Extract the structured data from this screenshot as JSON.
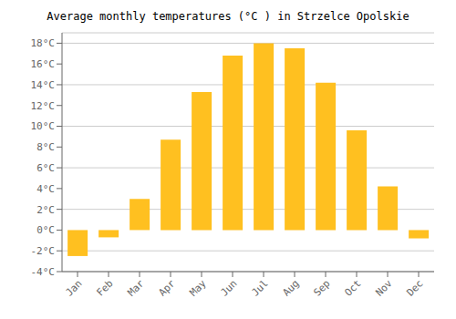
{
  "chart_data": {
    "type": "bar",
    "title": "Average monthly temperatures (°C ) in Strzelce Opolskie",
    "categories": [
      "Jan",
      "Feb",
      "Mar",
      "Apr",
      "May",
      "Jun",
      "Jul",
      "Aug",
      "Sep",
      "Oct",
      "Nov",
      "Dec"
    ],
    "values": [
      -2.5,
      -0.7,
      3.0,
      8.7,
      13.3,
      16.8,
      18.0,
      17.5,
      14.2,
      9.6,
      4.2,
      -0.8
    ],
    "color": "#FFC020",
    "ylim": [
      -4,
      19
    ],
    "yticks": [
      {
        "value": -4,
        "label": "-4°C"
      },
      {
        "value": -2,
        "label": "-2°C"
      },
      {
        "value": 0,
        "label": "0°C"
      },
      {
        "value": 2,
        "label": "2°C"
      },
      {
        "value": 4,
        "label": "4°C"
      },
      {
        "value": 6,
        "label": "6°C"
      },
      {
        "value": 8,
        "label": "8°C"
      },
      {
        "value": 10,
        "label": "10°C"
      },
      {
        "value": 12,
        "label": "12°C"
      },
      {
        "value": 14,
        "label": "14°C"
      },
      {
        "value": 16,
        "label": "16°C"
      },
      {
        "value": 18,
        "label": "18°C"
      }
    ],
    "grid": true
  }
}
